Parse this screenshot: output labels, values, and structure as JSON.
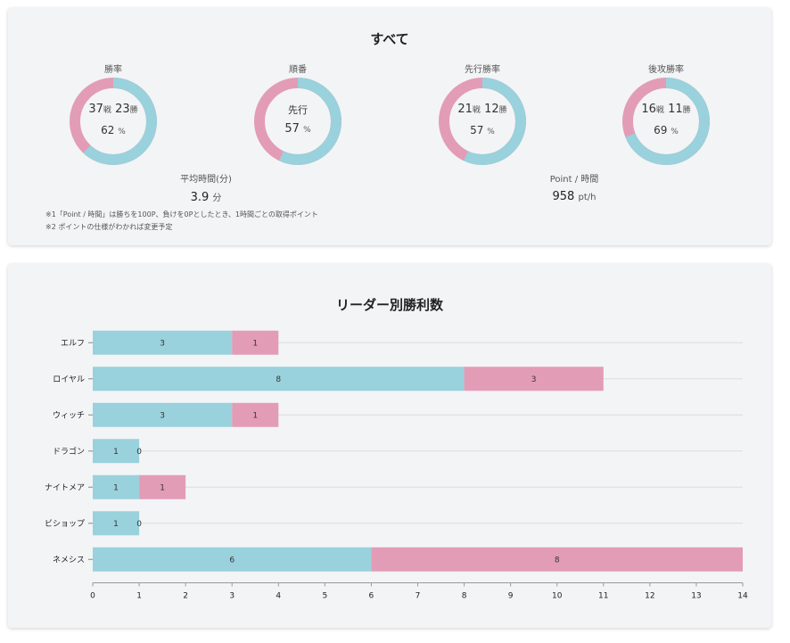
{
  "summary": {
    "title": "すべて",
    "colors": {
      "win": "#99d1dc",
      "loss": "#e39cb6"
    },
    "donuts": [
      {
        "label": "勝率",
        "line1_a": "37",
        "line1_a_unit": "戦",
        "line1_b": "23",
        "line1_b_unit": "勝",
        "percent": "62",
        "percent_unit": "%",
        "value": 0.62
      },
      {
        "label": "順番",
        "center": "先行",
        "percent": "57",
        "percent_unit": "%",
        "value": 0.57
      },
      {
        "label": "先行勝率",
        "line1_a": "21",
        "line1_a_unit": "戦",
        "line1_b": "12",
        "line1_b_unit": "勝",
        "percent": "57",
        "percent_unit": "%",
        "value": 0.57
      },
      {
        "label": "後攻勝率",
        "line1_a": "16",
        "line1_a_unit": "戦",
        "line1_b": "11",
        "line1_b_unit": "勝",
        "percent": "69",
        "percent_unit": "%",
        "value": 0.69
      }
    ],
    "avg_time": {
      "label": "平均時間(分)",
      "value": "3.9",
      "unit": "分"
    },
    "points": {
      "label": "Point / 時間",
      "value": "958",
      "unit": "pt/h"
    },
    "notes": [
      "※1「Point / 時間」は勝ちを100P、負けを0Pとしたとき、1時間ごとの取得ポイント",
      "※2 ポイントの仕様がわかれば変更予定"
    ]
  },
  "chart_data": {
    "type": "bar",
    "orientation": "horizontal",
    "stacked": true,
    "title": "リーダー別勝利数",
    "categories": [
      "エルフ",
      "ロイヤル",
      "ウィッチ",
      "ドラゴン",
      "ナイトメア",
      "ビショップ",
      "ネメシス"
    ],
    "series": [
      {
        "values": [
          3,
          8,
          3,
          1,
          1,
          1,
          6
        ],
        "color": "#99d1dc"
      },
      {
        "values": [
          1,
          3,
          1,
          0,
          1,
          0,
          8
        ],
        "color": "#e39cb6"
      }
    ],
    "xlim": [
      0,
      14
    ],
    "xticks": [
      0,
      1,
      2,
      3,
      4,
      5,
      6,
      7,
      8,
      9,
      10,
      11,
      12,
      13,
      14
    ],
    "grid": true
  }
}
